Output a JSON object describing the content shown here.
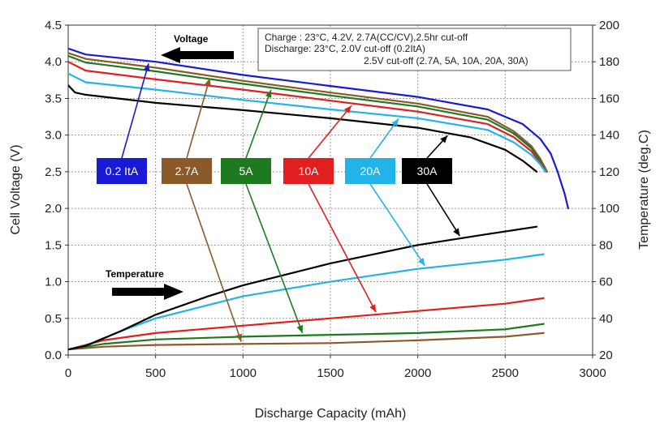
{
  "chart_data": {
    "type": "line",
    "xlabel": "Discharge Capacity (mAh)",
    "ylabel": "Cell Voltage  (V)",
    "y2label": "Temperature (deg.C)",
    "xlim": [
      0,
      3000
    ],
    "ylim": [
      0,
      4.5
    ],
    "y2lim": [
      20,
      200
    ],
    "x_ticks": [
      "0",
      "500",
      "1000",
      "1500",
      "2000",
      "2500",
      "3000"
    ],
    "y_ticks": [
      "0.0",
      "0.5",
      "1.0",
      "1.5",
      "2.0",
      "2.5",
      "3.0",
      "3.5",
      "4.0",
      "4.5"
    ],
    "y2_ticks": [
      "20",
      "40",
      "60",
      "80",
      "100",
      "120",
      "140",
      "160",
      "180",
      "200"
    ],
    "grid": true,
    "conditions": [
      "Charge : 23°C, 4.2V, 2.7A(CC/CV),2.5hr cut-off",
      "Discharge: 23°C, 2.0V cut-off (0.2ItA)",
      "2.5V cut-off (2.7A, 5A, 10A, 20A, 30A)"
    ],
    "annotations": {
      "voltage": "Voltage",
      "temperature": "Temperature"
    },
    "voltage_series": [
      {
        "name": "0.2 ItA",
        "color": "#1a1ad6",
        "x": [
          0,
          100,
          500,
          1000,
          1500,
          2000,
          2400,
          2600,
          2700,
          2760,
          2800,
          2840,
          2860
        ],
        "y": [
          4.18,
          4.1,
          4.0,
          3.82,
          3.67,
          3.52,
          3.35,
          3.15,
          2.95,
          2.75,
          2.5,
          2.2,
          2.0
        ]
      },
      {
        "name": "2.7A",
        "color": "#8b5a2b",
        "x": [
          0,
          100,
          500,
          1000,
          1500,
          2000,
          2400,
          2550,
          2650,
          2700,
          2740
        ],
        "y": [
          4.12,
          4.04,
          3.92,
          3.74,
          3.58,
          3.43,
          3.25,
          3.05,
          2.85,
          2.68,
          2.5
        ]
      },
      {
        "name": "5A",
        "color": "#1e7a1e",
        "x": [
          0,
          100,
          500,
          1000,
          1500,
          2000,
          2400,
          2550,
          2650,
          2700,
          2730
        ],
        "y": [
          4.08,
          3.99,
          3.87,
          3.7,
          3.54,
          3.39,
          3.21,
          3.02,
          2.82,
          2.65,
          2.5
        ]
      },
      {
        "name": "10A",
        "color": "#e02020",
        "x": [
          0,
          100,
          500,
          1000,
          1500,
          2000,
          2400,
          2550,
          2650,
          2700,
          2730
        ],
        "y": [
          4.0,
          3.88,
          3.76,
          3.62,
          3.47,
          3.32,
          3.15,
          2.97,
          2.78,
          2.62,
          2.5
        ]
      },
      {
        "name": "20A",
        "color": "#22b4e8",
        "x": [
          0,
          100,
          500,
          1000,
          1500,
          2000,
          2400,
          2550,
          2650,
          2700,
          2730
        ],
        "y": [
          3.84,
          3.72,
          3.62,
          3.48,
          3.35,
          3.23,
          3.07,
          2.9,
          2.73,
          2.6,
          2.5
        ]
      },
      {
        "name": "30A",
        "color": "#000000",
        "x": [
          0,
          40,
          100,
          500,
          1000,
          1500,
          2000,
          2300,
          2500,
          2600,
          2680
        ],
        "y": [
          3.68,
          3.58,
          3.55,
          3.44,
          3.34,
          3.23,
          3.1,
          2.97,
          2.8,
          2.65,
          2.5
        ]
      }
    ],
    "temperature_series": [
      {
        "name": "0.2 ItA",
        "color": "#1a1ad6",
        "x": [],
        "y": []
      },
      {
        "name": "2.7A",
        "color": "#8b5a2b",
        "x": [
          0,
          200,
          500,
          1000,
          1500,
          2000,
          2500,
          2720
        ],
        "y": [
          23,
          24.5,
          25.5,
          26,
          26.5,
          28,
          30,
          32
        ]
      },
      {
        "name": "5A",
        "color": "#1e7a1e",
        "x": [
          0,
          200,
          500,
          1000,
          1500,
          2000,
          2500,
          2720
        ],
        "y": [
          23,
          26,
          28.5,
          30,
          31,
          32,
          34,
          37
        ]
      },
      {
        "name": "10A",
        "color": "#e02020",
        "x": [
          0,
          200,
          500,
          1000,
          1500,
          2000,
          2500,
          2720
        ],
        "y": [
          23,
          28,
          32,
          36,
          40,
          44,
          48,
          51
        ]
      },
      {
        "name": "20A",
        "color": "#22b4e8",
        "x": [
          0,
          100,
          300,
          500,
          1000,
          1500,
          2000,
          2500,
          2720
        ],
        "y": [
          23,
          25,
          33,
          40,
          52,
          60,
          67,
          72,
          75
        ]
      },
      {
        "name": "30A",
        "color": "#000000",
        "x": [
          0,
          100,
          300,
          500,
          800,
          1000,
          1500,
          2000,
          2400,
          2680
        ],
        "y": [
          23,
          25,
          33,
          42,
          52,
          58,
          70,
          80,
          86,
          90
        ]
      }
    ]
  }
}
